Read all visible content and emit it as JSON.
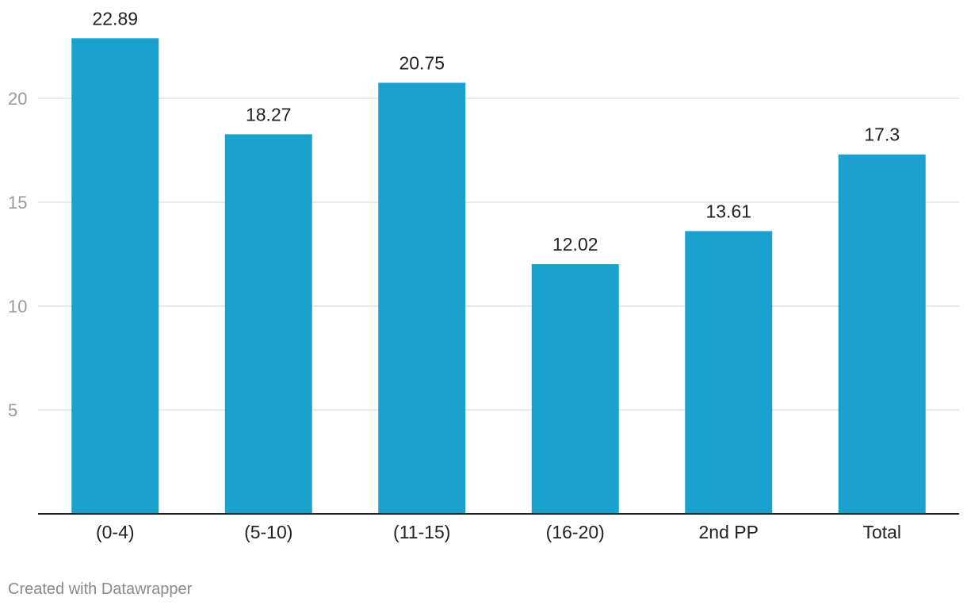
{
  "chart_data": {
    "type": "bar",
    "categories": [
      "(0-4)",
      "(5-10)",
      "(11-15)",
      "(16-20)",
      "2nd PP",
      "Total"
    ],
    "values": [
      22.89,
      18.27,
      20.75,
      12.02,
      13.61,
      17.3
    ],
    "value_labels": [
      "22.89",
      "18.27",
      "20.75",
      "12.02",
      "13.61",
      "17.3"
    ],
    "yticks": [
      5,
      10,
      15,
      20
    ],
    "ylim": [
      0,
      23.5
    ],
    "grid": true,
    "bar_color": "#1aa1ce",
    "title": "",
    "xlabel": "",
    "ylabel": ""
  },
  "credit": "Created with Datawrapper"
}
